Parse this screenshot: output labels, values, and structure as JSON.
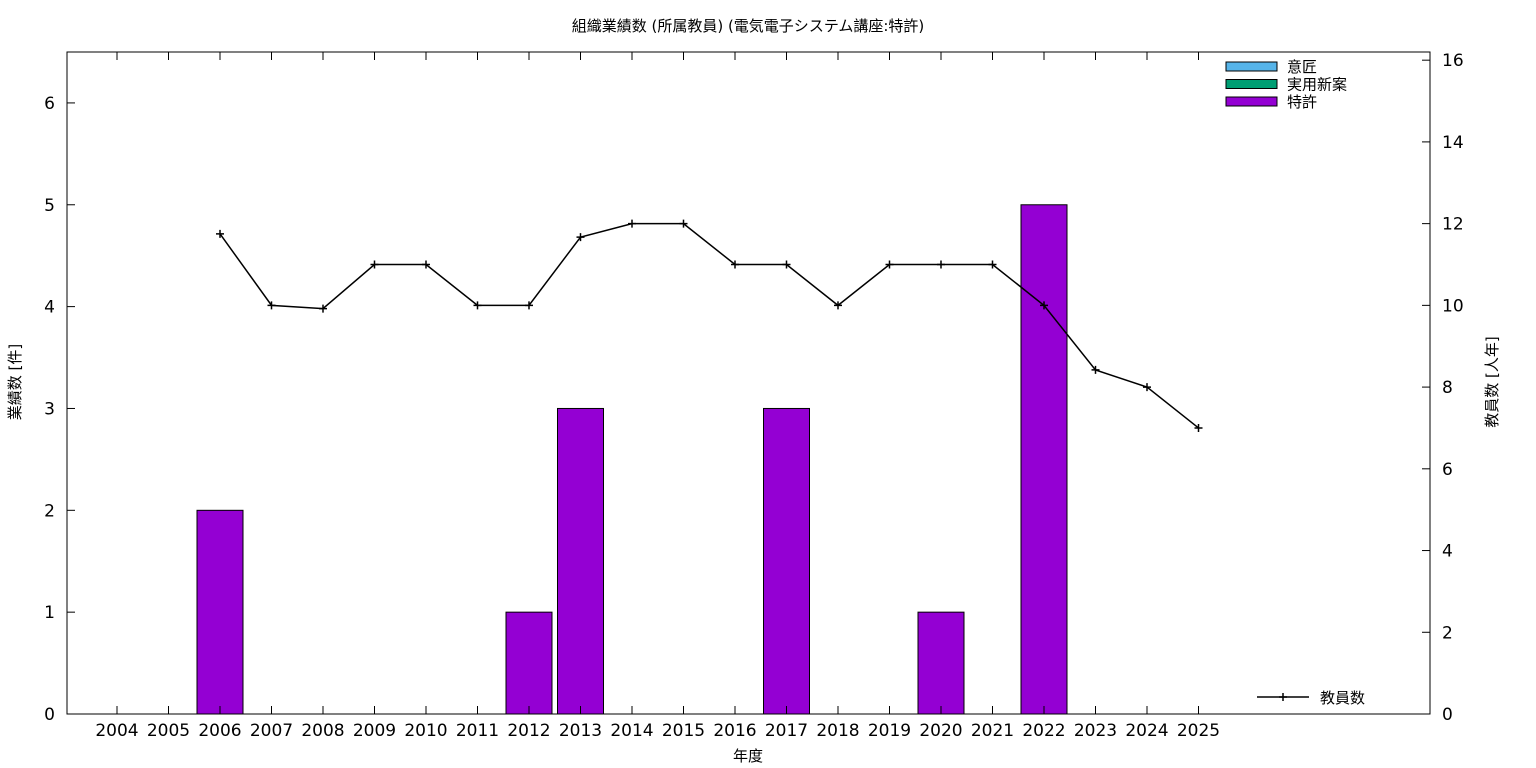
{
  "chart_data": {
    "type": "bar",
    "title": "組織業績数 (所属教員) (電気電子システム講座:特許)",
    "xlabel": "年度",
    "ylabel": "業績数 [件]",
    "y2label": "教員数 [人年]",
    "categories": [
      "2004",
      "2005",
      "2006",
      "2007",
      "2008",
      "2009",
      "2010",
      "2011",
      "2012",
      "2013",
      "2014",
      "2015",
      "2016",
      "2017",
      "2018",
      "2019",
      "2020",
      "2021",
      "2022",
      "2023",
      "2024",
      "2025"
    ],
    "ylim": [
      0,
      6.5
    ],
    "yticks": [
      "0",
      "1",
      "2",
      "3",
      "4",
      "5",
      "6"
    ],
    "y2lim": [
      0,
      16.2
    ],
    "y2ticks": [
      "0",
      "2",
      "4",
      "6",
      "8",
      "10",
      "12",
      "14",
      "16"
    ],
    "grid": false,
    "legend_position": "top-right",
    "series": [
      {
        "name": "意匠",
        "kind": "bar",
        "color": "#56b4e9",
        "values": [
          0,
          0,
          0,
          0,
          0,
          0,
          0,
          0,
          0,
          0,
          0,
          0,
          0,
          0,
          0,
          0,
          0,
          0,
          0,
          0,
          0,
          0
        ]
      },
      {
        "name": "実用新案",
        "kind": "bar",
        "color": "#009e73",
        "values": [
          0,
          0,
          0,
          0,
          0,
          0,
          0,
          0,
          0,
          0,
          0,
          0,
          0,
          0,
          0,
          0,
          0,
          0,
          0,
          0,
          0,
          0
        ]
      },
      {
        "name": "特許",
        "kind": "bar",
        "color": "#9400d3",
        "values": [
          0,
          0,
          2,
          0,
          0,
          0,
          0,
          0,
          1,
          3,
          0,
          0,
          0,
          3,
          0,
          0,
          1,
          0,
          5,
          0,
          0,
          0
        ]
      },
      {
        "name": "教員数",
        "kind": "line",
        "axis": "y2",
        "color": "#000000",
        "values": [
          null,
          null,
          11.75,
          10,
          9.92,
          11,
          11,
          10,
          10,
          11.67,
          12,
          12,
          11,
          11,
          10,
          11,
          11,
          11,
          10,
          8.42,
          8,
          7
        ]
      }
    ]
  }
}
